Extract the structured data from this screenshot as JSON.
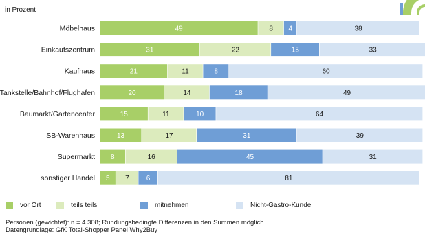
{
  "unit_label": "in Prozent",
  "colors": {
    "vor_ort": "#a8cf67",
    "teils_teils": "#dcebbd",
    "mitnehmen": "#6f9ed6",
    "nicht_gastro": "#d5e3f3",
    "logo": "#a8cf67"
  },
  "legend": [
    {
      "label": "vor Ort",
      "color": "#a8cf67"
    },
    {
      "label": "teils teils",
      "color": "#dcebbd"
    },
    {
      "label": "mitnehmen",
      "color": "#6f9ed6"
    },
    {
      "label": "Nicht-Gastro-Kunde",
      "color": "#d5e3f3"
    }
  ],
  "chart_data": {
    "type": "bar",
    "orientation": "horizontal",
    "stacked": true,
    "categories": [
      "Möbelhaus",
      "Einkaufszentrum",
      "Kaufhaus",
      "Tankstelle/Bahnhof/Flughafen",
      "Baumarkt/Gartencenter",
      "SB-Warenhaus",
      "Supermarkt",
      "sonstiger Handel"
    ],
    "series": [
      {
        "name": "vor Ort",
        "color": "#a8cf67",
        "text_color": "#ffffff",
        "values": [
          49,
          31,
          21,
          20,
          15,
          13,
          8,
          5
        ]
      },
      {
        "name": "teils teils",
        "color": "#dcebbd",
        "text_color": "#1a1a1a",
        "values": [
          8,
          22,
          11,
          14,
          11,
          17,
          16,
          7
        ]
      },
      {
        "name": "mitnehmen",
        "color": "#6f9ed6",
        "text_color": "#ffffff",
        "values": [
          4,
          15,
          8,
          18,
          10,
          31,
          45,
          6
        ]
      },
      {
        "name": "Nicht-Gastro-Kunde",
        "color": "#d5e3f3",
        "text_color": "#1a1a1a",
        "values": [
          38,
          33,
          60,
          49,
          64,
          39,
          31,
          81
        ]
      }
    ],
    "xlim": [
      0,
      100
    ],
    "grid": false,
    "legend_position": "bottom"
  },
  "footnotes": [
    "Personen (gewichtet): n = 4.308; Rundungsbedingte Differenzen in den Summen möglich.",
    "Datengrundlage: GfK Total-Shopper Panel Why2Buy"
  ]
}
